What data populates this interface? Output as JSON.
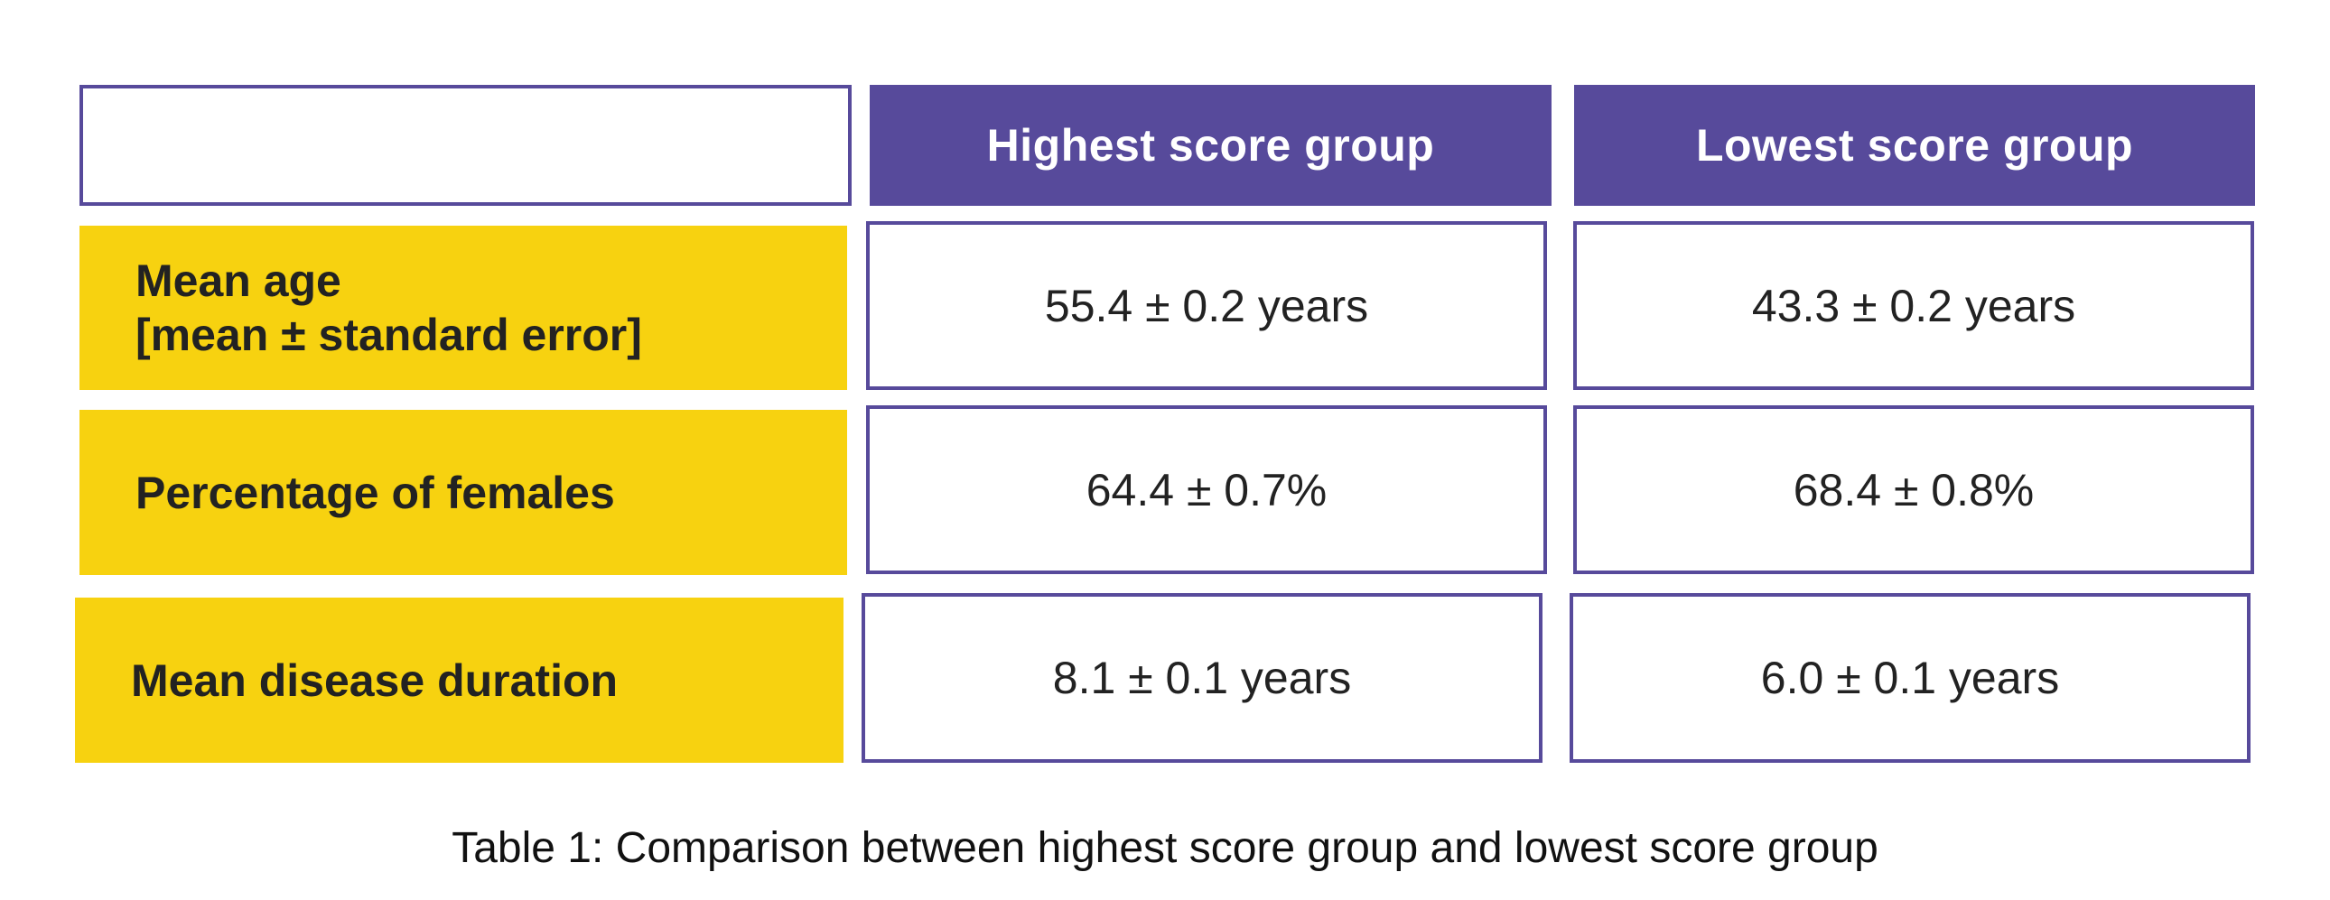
{
  "table": {
    "columns": [
      "Highest score group",
      "Lowest score group"
    ],
    "rows": [
      {
        "label_lines": [
          "Mean age",
          "[mean ± standard error]"
        ],
        "highest": "55.4 ± 0.2  years",
        "lowest": "43.3 ± 0.2 years"
      },
      {
        "label_lines": [
          "Percentage of females"
        ],
        "highest": "64.4 ± 0.7%",
        "lowest": "68.4 ± 0.8%"
      },
      {
        "label_lines": [
          "Mean disease duration"
        ],
        "highest": "8.1 ± 0.1 years",
        "lowest": "6.0 ± 0.1 years"
      }
    ]
  },
  "caption": "Table 1: Comparison between highest score group and lowest score group",
  "colors": {
    "header_purple": "#574a9b",
    "label_yellow": "#f7d210"
  }
}
